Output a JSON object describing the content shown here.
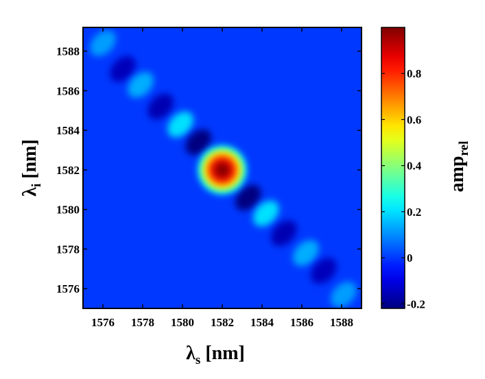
{
  "chart_data": {
    "type": "heatmap",
    "title": "",
    "xlabel": {
      "base": "λ",
      "sub": "s",
      "unit": " [nm]"
    },
    "ylabel": {
      "base": "λ",
      "sub": "i",
      "unit": " [nm]"
    },
    "xlim": [
      1575,
      1589
    ],
    "ylim": [
      1575,
      1589.2
    ],
    "x_ticks": [
      1576,
      1578,
      1580,
      1582,
      1584,
      1586,
      1588
    ],
    "y_ticks": [
      1576,
      1578,
      1580,
      1582,
      1584,
      1586,
      1588
    ],
    "colorbar": {
      "label": {
        "base": "amp",
        "sub": "rel"
      },
      "range": [
        -0.22,
        1.0
      ],
      "ticks": [
        -0.2,
        0,
        0.2,
        0.4,
        0.6,
        0.8
      ],
      "tick_labels": [
        "-0.2",
        "0",
        "0.2",
        "0.4",
        "0.6",
        "0.8"
      ],
      "colormap": "jet"
    },
    "central_peak": {
      "x": 1582,
      "y": 1582,
      "value": 1.0
    },
    "lobes": [
      {
        "x": 1576.0,
        "y": 1588.4,
        "value": 0.12
      },
      {
        "x": 1577.0,
        "y": 1587.1,
        "value": -0.15
      },
      {
        "x": 1577.9,
        "y": 1586.3,
        "value": 0.14
      },
      {
        "x": 1578.9,
        "y": 1585.2,
        "value": -0.16
      },
      {
        "x": 1579.9,
        "y": 1584.3,
        "value": 0.2
      },
      {
        "x": 1580.8,
        "y": 1583.4,
        "value": -0.22
      },
      {
        "x": 1583.3,
        "y": 1580.6,
        "value": -0.22
      },
      {
        "x": 1584.2,
        "y": 1579.8,
        "value": 0.2
      },
      {
        "x": 1585.1,
        "y": 1578.8,
        "value": -0.16
      },
      {
        "x": 1586.2,
        "y": 1577.8,
        "value": 0.14
      },
      {
        "x": 1587.1,
        "y": 1576.9,
        "value": -0.15
      },
      {
        "x": 1588.1,
        "y": 1575.7,
        "value": 0.12
      }
    ],
    "background_value": 0.0
  }
}
